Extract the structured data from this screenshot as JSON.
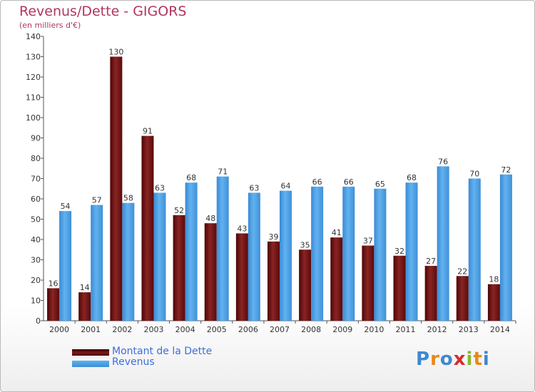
{
  "title": "Revenus/Dette - GIGORS",
  "subtitle": "(en milliers d'€)",
  "logo": {
    "text": "Proxiti",
    "letters": [
      "P",
      "r",
      "o",
      "x",
      "i",
      "t",
      "i"
    ],
    "colors": [
      "#3f88d0",
      "#e8891c",
      "#3f88d0",
      "#d62d2d",
      "#88b82a",
      "#e8891c",
      "#3f88d0"
    ]
  },
  "legend": [
    {
      "label": "Montant de la Dette",
      "color": "#6b0f0f"
    },
    {
      "label": "Revenus",
      "color": "#4aa0e6"
    }
  ],
  "chart_data": {
    "type": "bar",
    "title": "Revenus/Dette - GIGORS",
    "ylabel": "(en milliers d'€)",
    "categories": [
      "2000",
      "2001",
      "2002",
      "2003",
      "2004",
      "2005",
      "2006",
      "2007",
      "2008",
      "2009",
      "2010",
      "2011",
      "2012",
      "2013",
      "2014"
    ],
    "series": [
      {
        "name": "Montant de la Dette",
        "color": "#6b0f0f",
        "values": [
          16,
          14,
          130,
          91,
          52,
          48,
          43,
          39,
          35,
          41,
          37,
          32,
          27,
          22,
          18
        ]
      },
      {
        "name": "Revenus",
        "color": "#4aa0e6",
        "values": [
          54,
          57,
          58,
          63,
          68,
          71,
          63,
          64,
          66,
          66,
          65,
          68,
          76,
          70,
          72
        ]
      }
    ],
    "ylim": [
      0,
      140
    ],
    "yticks": [
      0,
      10,
      20,
      30,
      40,
      50,
      60,
      70,
      80,
      90,
      100,
      110,
      120,
      130,
      140
    ],
    "grid": false,
    "legend_position": "bottom-left"
  }
}
